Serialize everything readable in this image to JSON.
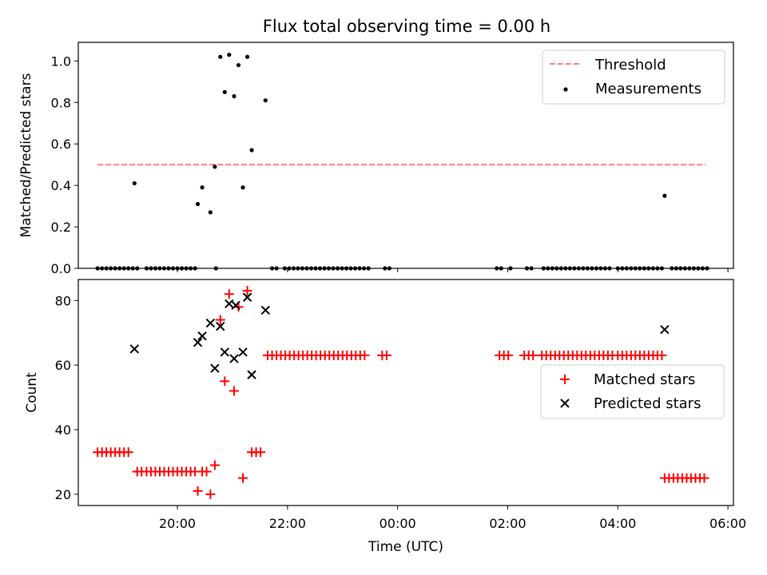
{
  "title": "Flux total observing time = 0.00 h",
  "colors": {
    "threshold": "#ff7f7f",
    "measurement": "#000000",
    "matched": "#ff0000",
    "predicted": "#000000"
  },
  "chart_data": [
    {
      "type": "scatter",
      "title": "Flux total observing time = 0.00 h",
      "ylabel": "Matched/Predicted stars",
      "xlim": [
        18.2,
        30.1
      ],
      "ylim": [
        0.0,
        1.09
      ],
      "yticks": [
        0.0,
        0.2,
        0.4,
        0.6,
        0.8,
        1.0
      ],
      "ytick_labels": [
        "0.0",
        "0.2",
        "0.4",
        "0.6",
        "0.8",
        "1.0"
      ],
      "legend": {
        "placement": "top-right",
        "threshold_label": "Threshold",
        "measurements_label": "Measurements"
      },
      "threshold": {
        "y": 0.5,
        "x": [
          18.55,
          29.6
        ]
      },
      "series": [
        {
          "name": "Measurements",
          "marker": "dot",
          "points": [
            [
              18.55,
              0
            ],
            [
              18.63,
              0
            ],
            [
              18.71,
              0
            ],
            [
              18.79,
              0
            ],
            [
              18.87,
              0
            ],
            [
              18.95,
              0
            ],
            [
              19.03,
              0
            ],
            [
              19.11,
              0
            ],
            [
              19.19,
              0
            ],
            [
              19.27,
              0
            ],
            [
              19.44,
              0
            ],
            [
              19.52,
              0
            ],
            [
              19.6,
              0
            ],
            [
              19.68,
              0
            ],
            [
              19.76,
              0
            ],
            [
              19.84,
              0
            ],
            [
              19.92,
              0
            ],
            [
              20.0,
              0
            ],
            [
              20.08,
              0
            ],
            [
              20.16,
              0
            ],
            [
              20.24,
              0
            ],
            [
              20.32,
              0
            ],
            [
              20.7,
              0
            ],
            [
              21.72,
              0
            ],
            [
              21.8,
              0
            ],
            [
              21.95,
              0
            ],
            [
              22.03,
              0
            ],
            [
              22.11,
              0
            ],
            [
              22.19,
              0
            ],
            [
              22.27,
              0
            ],
            [
              22.35,
              0
            ],
            [
              22.43,
              0
            ],
            [
              22.51,
              0
            ],
            [
              22.59,
              0
            ],
            [
              22.67,
              0
            ],
            [
              22.75,
              0
            ],
            [
              22.83,
              0
            ],
            [
              22.91,
              0
            ],
            [
              22.99,
              0
            ],
            [
              23.07,
              0
            ],
            [
              23.15,
              0
            ],
            [
              23.23,
              0
            ],
            [
              23.31,
              0
            ],
            [
              23.39,
              0
            ],
            [
              23.47,
              0
            ],
            [
              23.77,
              0
            ],
            [
              23.85,
              0
            ],
            [
              25.8,
              0
            ],
            [
              25.88,
              0
            ],
            [
              26.05,
              0
            ],
            [
              26.35,
              0
            ],
            [
              26.43,
              0
            ],
            [
              26.65,
              0
            ],
            [
              26.73,
              0
            ],
            [
              26.81,
              0
            ],
            [
              26.89,
              0
            ],
            [
              26.97,
              0
            ],
            [
              27.05,
              0
            ],
            [
              27.13,
              0
            ],
            [
              27.21,
              0
            ],
            [
              27.29,
              0
            ],
            [
              27.37,
              0
            ],
            [
              27.45,
              0
            ],
            [
              27.53,
              0
            ],
            [
              27.61,
              0
            ],
            [
              27.69,
              0
            ],
            [
              27.77,
              0
            ],
            [
              27.85,
              0
            ],
            [
              28.0,
              0
            ],
            [
              28.08,
              0
            ],
            [
              28.16,
              0
            ],
            [
              28.24,
              0
            ],
            [
              28.32,
              0
            ],
            [
              28.4,
              0
            ],
            [
              28.48,
              0
            ],
            [
              28.56,
              0
            ],
            [
              28.64,
              0
            ],
            [
              28.72,
              0
            ],
            [
              28.8,
              0
            ],
            [
              28.98,
              0
            ],
            [
              29.06,
              0
            ],
            [
              29.14,
              0
            ],
            [
              29.22,
              0
            ],
            [
              29.3,
              0
            ],
            [
              29.38,
              0
            ],
            [
              29.46,
              0
            ],
            [
              29.54,
              0
            ],
            [
              29.62,
              0
            ],
            [
              19.22,
              0.41
            ],
            [
              20.37,
              0.31
            ],
            [
              20.45,
              0.39
            ],
            [
              20.6,
              0.27
            ],
            [
              20.68,
              0.49
            ],
            [
              20.78,
              1.02
            ],
            [
              20.86,
              0.85
            ],
            [
              20.94,
              1.03
            ],
            [
              21.03,
              0.83
            ],
            [
              21.11,
              0.98
            ],
            [
              21.19,
              0.39
            ],
            [
              21.27,
              1.02
            ],
            [
              21.35,
              0.57
            ],
            [
              21.6,
              0.81
            ],
            [
              28.85,
              0.35
            ]
          ]
        }
      ]
    },
    {
      "type": "scatter",
      "xlabel": "Time (UTC)",
      "ylabel": "Count",
      "xlim": [
        18.2,
        30.1
      ],
      "ylim": [
        16.5,
        86.5
      ],
      "xticks": [
        20,
        22,
        24,
        26,
        28,
        30
      ],
      "xtick_labels": [
        "20:00",
        "22:00",
        "00:00",
        "02:00",
        "04:00",
        "06:00"
      ],
      "yticks": [
        20,
        40,
        60,
        80
      ],
      "ytick_labels": [
        "20",
        "40",
        "60",
        "80"
      ],
      "legend": {
        "placement": "right"
      },
      "series": [
        {
          "name": "Matched stars",
          "marker": "plus",
          "points": [
            [
              18.55,
              33
            ],
            [
              18.63,
              33
            ],
            [
              18.71,
              33
            ],
            [
              18.79,
              33
            ],
            [
              18.87,
              33
            ],
            [
              18.95,
              33
            ],
            [
              19.03,
              33
            ],
            [
              19.11,
              33
            ],
            [
              19.27,
              27
            ],
            [
              19.35,
              27
            ],
            [
              19.44,
              27
            ],
            [
              19.52,
              27
            ],
            [
              19.6,
              27
            ],
            [
              19.68,
              27
            ],
            [
              19.76,
              27
            ],
            [
              19.84,
              27
            ],
            [
              19.92,
              27
            ],
            [
              20.0,
              27
            ],
            [
              20.08,
              27
            ],
            [
              20.16,
              27
            ],
            [
              20.24,
              27
            ],
            [
              20.32,
              27
            ],
            [
              20.45,
              27
            ],
            [
              20.53,
              27
            ],
            [
              20.37,
              21
            ],
            [
              20.6,
              20
            ],
            [
              20.68,
              29
            ],
            [
              20.78,
              74
            ],
            [
              20.86,
              55
            ],
            [
              20.94,
              82
            ],
            [
              21.03,
              52
            ],
            [
              21.11,
              78
            ],
            [
              21.19,
              25
            ],
            [
              21.27,
              83
            ],
            [
              21.35,
              33
            ],
            [
              21.43,
              33
            ],
            [
              21.51,
              33
            ],
            [
              21.64,
              63
            ],
            [
              21.72,
              63
            ],
            [
              21.8,
              63
            ],
            [
              21.88,
              63
            ],
            [
              21.96,
              63
            ],
            [
              22.04,
              63
            ],
            [
              22.12,
              63
            ],
            [
              22.2,
              63
            ],
            [
              22.28,
              63
            ],
            [
              22.36,
              63
            ],
            [
              22.44,
              63
            ],
            [
              22.52,
              63
            ],
            [
              22.6,
              63
            ],
            [
              22.68,
              63
            ],
            [
              22.76,
              63
            ],
            [
              22.84,
              63
            ],
            [
              22.92,
              63
            ],
            [
              23.0,
              63
            ],
            [
              23.08,
              63
            ],
            [
              23.16,
              63
            ],
            [
              23.24,
              63
            ],
            [
              23.32,
              63
            ],
            [
              23.4,
              63
            ],
            [
              23.72,
              63
            ],
            [
              23.8,
              63
            ],
            [
              25.85,
              63
            ],
            [
              25.93,
              63
            ],
            [
              26.01,
              63
            ],
            [
              26.3,
              63
            ],
            [
              26.38,
              63
            ],
            [
              26.46,
              63
            ],
            [
              26.62,
              63
            ],
            [
              26.7,
              63
            ],
            [
              26.78,
              63
            ],
            [
              26.86,
              63
            ],
            [
              26.94,
              63
            ],
            [
              27.02,
              63
            ],
            [
              27.1,
              63
            ],
            [
              27.18,
              63
            ],
            [
              27.26,
              63
            ],
            [
              27.34,
              63
            ],
            [
              27.42,
              63
            ],
            [
              27.5,
              63
            ],
            [
              27.58,
              63
            ],
            [
              27.66,
              63
            ],
            [
              27.74,
              63
            ],
            [
              27.82,
              63
            ],
            [
              27.9,
              63
            ],
            [
              28.0,
              63
            ],
            [
              28.08,
              63
            ],
            [
              28.16,
              63
            ],
            [
              28.24,
              63
            ],
            [
              28.32,
              63
            ],
            [
              28.4,
              63
            ],
            [
              28.48,
              63
            ],
            [
              28.56,
              63
            ],
            [
              28.64,
              63
            ],
            [
              28.72,
              63
            ],
            [
              28.8,
              63
            ],
            [
              28.85,
              25
            ],
            [
              28.93,
              25
            ],
            [
              29.01,
              25
            ],
            [
              29.09,
              25
            ],
            [
              29.17,
              25
            ],
            [
              29.25,
              25
            ],
            [
              29.33,
              25
            ],
            [
              29.41,
              25
            ],
            [
              29.49,
              25
            ],
            [
              29.57,
              25
            ]
          ]
        },
        {
          "name": "Predicted stars",
          "marker": "x",
          "points": [
            [
              19.22,
              65
            ],
            [
              20.37,
              67
            ],
            [
              20.45,
              69
            ],
            [
              20.6,
              73
            ],
            [
              20.68,
              59
            ],
            [
              20.78,
              72
            ],
            [
              20.86,
              64
            ],
            [
              20.94,
              79
            ],
            [
              21.03,
              62
            ],
            [
              21.06,
              78.5
            ],
            [
              21.19,
              64
            ],
            [
              21.27,
              81
            ],
            [
              21.35,
              57
            ],
            [
              21.6,
              77
            ],
            [
              28.85,
              71
            ]
          ]
        }
      ]
    }
  ]
}
